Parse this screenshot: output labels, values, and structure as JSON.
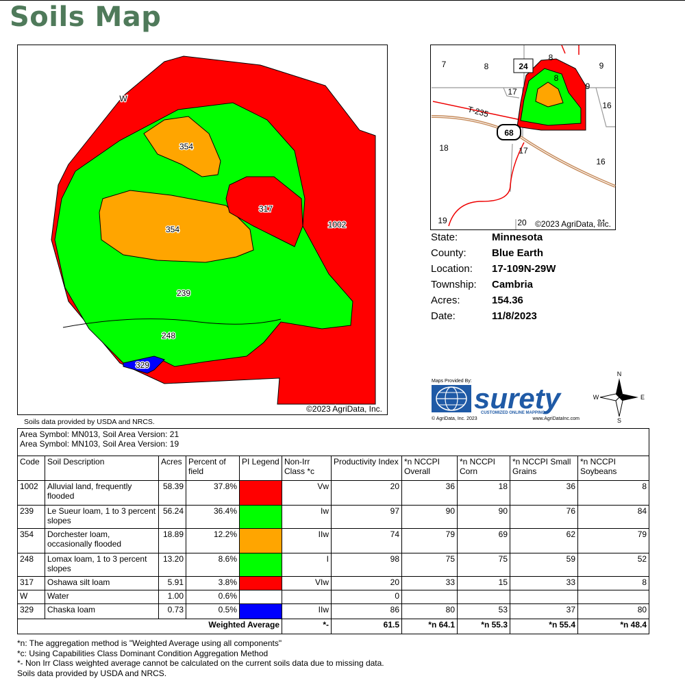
{
  "header": {
    "title": "Soils Map"
  },
  "map": {
    "labels": [
      "W",
      "354",
      "317",
      "1002",
      "354",
      "239",
      "248",
      "329"
    ],
    "copyright": "©2023 AgriData, Inc.",
    "source": "Soils data provided by USDA and NRCS."
  },
  "locator": {
    "labels": [
      "7",
      "8",
      "24",
      "8",
      "9",
      "17",
      "8",
      "9",
      "16",
      "T-235",
      "68",
      "18",
      "17",
      "16",
      "19",
      "20",
      "21"
    ],
    "copyright": "©2023 AgriData, Inc."
  },
  "info": {
    "rows": [
      [
        "State:",
        "Minnesota"
      ],
      [
        "County:",
        "Blue Earth"
      ],
      [
        "Location:",
        "17-109N-29W"
      ],
      [
        "Township:",
        "Cambria"
      ],
      [
        "Acres:",
        "154.36"
      ],
      [
        "Date:",
        "11/8/2023"
      ]
    ]
  },
  "logo": {
    "provided_by": "Maps Provided By:",
    "brand": "surety",
    "tagline": "CUSTOMIZED ONLINE MAPPING",
    "copyright": "© AgriData, Inc. 2023",
    "url": "www.AgriDataInc.com"
  },
  "compass": {
    "n": "N",
    "e": "E",
    "s": "S",
    "w": "W"
  },
  "table": {
    "area_symbols": [
      "Area Symbol: MN013, Soil Area Version: 21",
      "Area Symbol: MN103, Soil Area Version: 19"
    ],
    "headers": [
      "Code",
      "Soil Description",
      "Acres",
      "Percent of field",
      "PI Legend",
      "Non-Irr Class *c",
      "Productivity Index",
      "*n NCCPI Overall",
      "*n NCCPI Corn",
      "*n NCCPI Small Grains",
      "*n NCCPI Soybeans"
    ],
    "pi_colors": [
      "#ff0000",
      "#00ff00",
      "#ffa500",
      "#00ff00",
      "#ff0000",
      null,
      "#0000ff"
    ],
    "rows": [
      [
        "1002",
        "Alluvial land, frequently flooded",
        "58.39",
        "37.8%",
        null,
        "Vw",
        "20",
        "36",
        "18",
        "36",
        "8"
      ],
      [
        "239",
        "Le Sueur loam, 1 to 3 percent slopes",
        "56.24",
        "36.4%",
        null,
        "Iw",
        "97",
        "90",
        "90",
        "76",
        "84"
      ],
      [
        "354",
        "Dorchester loam, occasionally flooded",
        "18.89",
        "12.2%",
        null,
        "IIw",
        "74",
        "79",
        "69",
        "62",
        "79"
      ],
      [
        "248",
        "Lomax loam, 1 to 3 percent slopes",
        "13.20",
        "8.6%",
        null,
        "I",
        "98",
        "75",
        "75",
        "59",
        "52"
      ],
      [
        "317",
        "Oshawa silt loam",
        "5.91",
        "3.8%",
        null,
        "VIw",
        "20",
        "33",
        "15",
        "33",
        "8"
      ],
      [
        "W",
        "Water",
        "1.00",
        "0.6%",
        null,
        null,
        "0",
        null,
        null,
        null,
        null
      ],
      [
        "329",
        "Chaska loam",
        "0.73",
        "0.5%",
        null,
        "IIw",
        "86",
        "80",
        "53",
        "37",
        "80"
      ]
    ],
    "weighted_average": {
      "label": "Weighted Average",
      "values": [
        "*-",
        "61.5",
        "*n 64.1",
        "*n 55.3",
        "*n 55.4",
        "*n 48.4"
      ]
    }
  },
  "footnotes": [
    "*n: The aggregation method is \"Weighted Average using all components\"",
    "*c: Using Capabilities Class Dominant Condition Aggregation Method",
    "*- Non Irr Class weighted average cannot be calculated on the current soils data due to missing data.",
    "Soils data provided by USDA and NRCS."
  ]
}
